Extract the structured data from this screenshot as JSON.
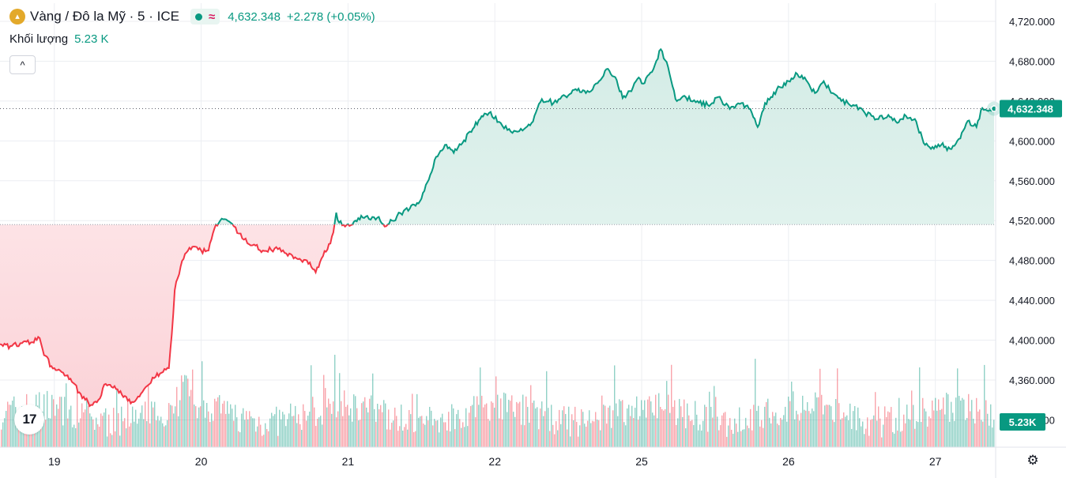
{
  "header": {
    "title": "Vàng / Đô la Mỹ · 5 · ICE",
    "price": "4,632.348",
    "change": "+2.278 (+0.05%)",
    "logo_icon": "gold-bars-icon",
    "status_icon": "market-open-dot-icon",
    "wave_icon": "wave-icon",
    "wave_glyph": "≈"
  },
  "volume_legend": {
    "label": "Khối lượng",
    "value": "5.23 K"
  },
  "controls": {
    "collapse_glyph": "^",
    "settings_glyph": "⚙",
    "tv_logo_text": "17"
  },
  "colors": {
    "up": "#089981",
    "down": "#f23645",
    "up_fill": "#e6f4f1",
    "down_fill": "#fde7ea",
    "grid": "#eceef2",
    "axis_text": "#131722"
  },
  "chart_data": {
    "type": "area",
    "baseline": 4516,
    "ylim": [
      4314,
      4738
    ],
    "y_ticks": [
      "4,720.000",
      "4,680.000",
      "4,640.000",
      "4,600.000",
      "4,560.000",
      "4,520.000",
      "4,480.000",
      "4,440.000",
      "4,400.000",
      "4,360.000",
      "4,320.000"
    ],
    "y_tick_values": [
      4720,
      4680,
      4640,
      4600,
      4560,
      4520,
      4480,
      4440,
      4400,
      4360,
      4320
    ],
    "x_ticks": [
      "19",
      "20",
      "21",
      "22",
      "25",
      "26",
      "27"
    ],
    "x_tick_index": [
      1,
      2,
      3,
      4,
      5,
      6,
      7
    ],
    "x_range": [
      0.63,
      7.4
    ],
    "last_price_label": "4,632.348",
    "last_price_value": 4632.348,
    "volume_label": "5.23K",
    "series": [
      {
        "values": [
          [
            0.63,
            4396
          ],
          [
            0.7,
            4394
          ],
          [
            0.78,
            4397
          ],
          [
            0.85,
            4398
          ],
          [
            0.9,
            4402
          ],
          [
            0.93,
            4385
          ],
          [
            0.98,
            4374
          ],
          [
            1.05,
            4368
          ],
          [
            1.12,
            4358
          ],
          [
            1.18,
            4346
          ],
          [
            1.25,
            4335
          ],
          [
            1.3,
            4340
          ],
          [
            1.35,
            4356
          ],
          [
            1.42,
            4351
          ],
          [
            1.48,
            4344
          ],
          [
            1.53,
            4338
          ],
          [
            1.6,
            4348
          ],
          [
            1.68,
            4362
          ],
          [
            1.74,
            4368
          ],
          [
            1.78,
            4372
          ],
          [
            1.8,
            4406
          ],
          [
            1.82,
            4450
          ],
          [
            1.86,
            4474
          ],
          [
            1.9,
            4488
          ],
          [
            1.95,
            4494
          ],
          [
            2.0,
            4490
          ],
          [
            2.05,
            4490
          ],
          [
            2.1,
            4516
          ],
          [
            2.14,
            4522
          ],
          [
            2.2,
            4518
          ],
          [
            2.28,
            4502
          ],
          [
            2.36,
            4496
          ],
          [
            2.42,
            4490
          ],
          [
            2.5,
            4492
          ],
          [
            2.58,
            4487
          ],
          [
            2.65,
            4482
          ],
          [
            2.72,
            4480
          ],
          [
            2.78,
            4468
          ],
          [
            2.82,
            4482
          ],
          [
            2.88,
            4497
          ],
          [
            2.9,
            4508
          ],
          [
            2.92,
            4528
          ],
          [
            2.94,
            4518
          ],
          [
            2.98,
            4514
          ],
          [
            3.05,
            4520
          ],
          [
            3.12,
            4524
          ],
          [
            3.2,
            4523
          ],
          [
            3.25,
            4514
          ],
          [
            3.3,
            4520
          ],
          [
            3.38,
            4530
          ],
          [
            3.45,
            4536
          ],
          [
            3.5,
            4542
          ],
          [
            3.55,
            4561
          ],
          [
            3.6,
            4584
          ],
          [
            3.66,
            4596
          ],
          [
            3.72,
            4588
          ],
          [
            3.78,
            4598
          ],
          [
            3.85,
            4612
          ],
          [
            3.9,
            4622
          ],
          [
            3.96,
            4628
          ],
          [
            4.04,
            4618
          ],
          [
            4.12,
            4608
          ],
          [
            4.2,
            4612
          ],
          [
            4.25,
            4618
          ],
          [
            4.32,
            4642
          ],
          [
            4.4,
            4638
          ],
          [
            4.48,
            4645
          ],
          [
            4.55,
            4652
          ],
          [
            4.62,
            4648
          ],
          [
            4.7,
            4658
          ],
          [
            4.76,
            4672
          ],
          [
            4.82,
            4664
          ],
          [
            4.87,
            4643
          ],
          [
            4.92,
            4650
          ],
          [
            4.97,
            4662
          ],
          [
            5.02,
            4658
          ],
          [
            5.08,
            4672
          ],
          [
            5.13,
            4692
          ],
          [
            5.18,
            4674
          ],
          [
            5.23,
            4642
          ],
          [
            5.3,
            4644
          ],
          [
            5.38,
            4640
          ],
          [
            5.45,
            4636
          ],
          [
            5.52,
            4644
          ],
          [
            5.6,
            4632
          ],
          [
            5.68,
            4638
          ],
          [
            5.74,
            4632
          ],
          [
            5.79,
            4614
          ],
          [
            5.84,
            4638
          ],
          [
            5.88,
            4644
          ],
          [
            5.94,
            4654
          ],
          [
            6.0,
            4660
          ],
          [
            6.06,
            4667
          ],
          [
            6.12,
            4661
          ],
          [
            6.18,
            4648
          ],
          [
            6.24,
            4660
          ],
          [
            6.3,
            4648
          ],
          [
            6.36,
            4640
          ],
          [
            6.44,
            4636
          ],
          [
            6.52,
            4628
          ],
          [
            6.6,
            4622
          ],
          [
            6.68,
            4626
          ],
          [
            6.74,
            4618
          ],
          [
            6.8,
            4625
          ],
          [
            6.86,
            4622
          ],
          [
            6.92,
            4598
          ],
          [
            6.98,
            4594
          ],
          [
            7.04,
            4596
          ],
          [
            7.1,
            4592
          ],
          [
            7.16,
            4602
          ],
          [
            7.22,
            4620
          ],
          [
            7.28,
            4614
          ],
          [
            7.32,
            4633
          ],
          [
            7.36,
            4630
          ],
          [
            7.4,
            4632
          ]
        ]
      }
    ]
  }
}
